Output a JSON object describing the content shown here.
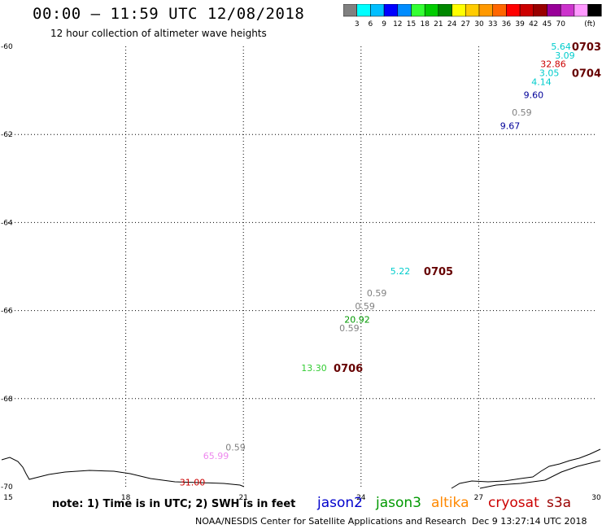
{
  "header": {
    "title": "00:00 – 11:59 UTC 12/08/2018",
    "subtitle": "12 hour collection of altimeter wave heights"
  },
  "colorbar": {
    "colors": [
      "#808080",
      "#00ffff",
      "#00bfff",
      "#0000ff",
      "#008cff",
      "#33ff33",
      "#00cc00",
      "#008800",
      "#ffff00",
      "#ffcc00",
      "#ff9900",
      "#ff6600",
      "#ff0000",
      "#cc0000",
      "#990000",
      "#990099",
      "#cc33cc",
      "#ff99ff",
      "#000000"
    ],
    "labels": [
      "3",
      "6",
      "9",
      "12",
      "15",
      "18",
      "21",
      "24",
      "27",
      "30",
      "33",
      "36",
      "39",
      "42",
      "45",
      "70"
    ],
    "unit": "(ft)"
  },
  "chart_data": {
    "type": "scatter",
    "xlim": [
      15,
      30
    ],
    "ylim": [
      -70,
      -60
    ],
    "x_ticks": [
      15,
      18,
      21,
      24,
      27,
      30
    ],
    "y_ticks": [
      -60,
      -62,
      -64,
      -66,
      -68,
      -70
    ],
    "x_tick_labels": [
      "15",
      "18",
      "21",
      "24",
      "27",
      "30"
    ],
    "y_tick_labels": [
      "-60",
      "-62",
      "-64",
      "-66",
      "-68",
      "-70"
    ],
    "grid": true,
    "wave_heights": [
      {
        "x": 29.1,
        "y": -60.0,
        "label": "5.64",
        "color": "#00cccc"
      },
      {
        "x": 29.2,
        "y": -60.2,
        "label": "3.09",
        "color": "#00cccc"
      },
      {
        "x": 28.9,
        "y": -60.4,
        "label": "32.86",
        "color": "#cc0000"
      },
      {
        "x": 28.8,
        "y": -60.6,
        "label": "3.05",
        "color": "#00cccc"
      },
      {
        "x": 28.6,
        "y": -60.8,
        "label": "4.14",
        "color": "#00cccc"
      },
      {
        "x": 28.4,
        "y": -61.1,
        "label": "9.60",
        "color": "#000099"
      },
      {
        "x": 28.1,
        "y": -61.5,
        "label": "0.59",
        "color": "#808080"
      },
      {
        "x": 27.8,
        "y": -61.8,
        "label": "9.67",
        "color": "#000099"
      },
      {
        "x": 25.0,
        "y": -65.1,
        "label": "5.22",
        "color": "#00cccc"
      },
      {
        "x": 24.4,
        "y": -65.6,
        "label": "0.59",
        "color": "#808080"
      },
      {
        "x": 24.1,
        "y": -65.9,
        "label": "0.59",
        "color": "#808080"
      },
      {
        "x": 23.9,
        "y": -66.2,
        "label": "20.92",
        "color": "#009900"
      },
      {
        "x": 23.7,
        "y": -66.4,
        "label": "0.59",
        "color": "#808080"
      },
      {
        "x": 22.8,
        "y": -67.3,
        "label": "13.30",
        "color": "#33cc33"
      },
      {
        "x": 20.8,
        "y": -69.1,
        "label": "0.59",
        "color": "#808080"
      },
      {
        "x": 20.3,
        "y": -69.3,
        "label": "65.99",
        "color": "#ee88ee"
      },
      {
        "x": 19.7,
        "y": -69.9,
        "label": "31.00",
        "color": "#cc0000"
      }
    ],
    "time_stamps": [
      {
        "x": 30.0,
        "y": -60.0,
        "label": "0703"
      },
      {
        "x": 29.7,
        "y": -60.6,
        "label": "0704"
      },
      {
        "x": 25.6,
        "y": -65.1,
        "label": "0705"
      },
      {
        "x": 23.3,
        "y": -67.3,
        "label": "0706"
      }
    ]
  },
  "footer": {
    "note": "note: 1) Time is in UTC; 2) SWH is in feet",
    "credit": "NOAA/NESDIS Center for Satellite Applications and Research",
    "timestamp": "Dec  9 13:27:14 UTC 2018",
    "satellites": [
      {
        "name": "jason2",
        "color": "#0000cc"
      },
      {
        "name": "jason3",
        "color": "#009900"
      },
      {
        "name": "altika",
        "color": "#ff8800"
      },
      {
        "name": "cryosat",
        "color": "#cc0000"
      },
      {
        "name": "s3a",
        "color": "#990000"
      }
    ]
  }
}
